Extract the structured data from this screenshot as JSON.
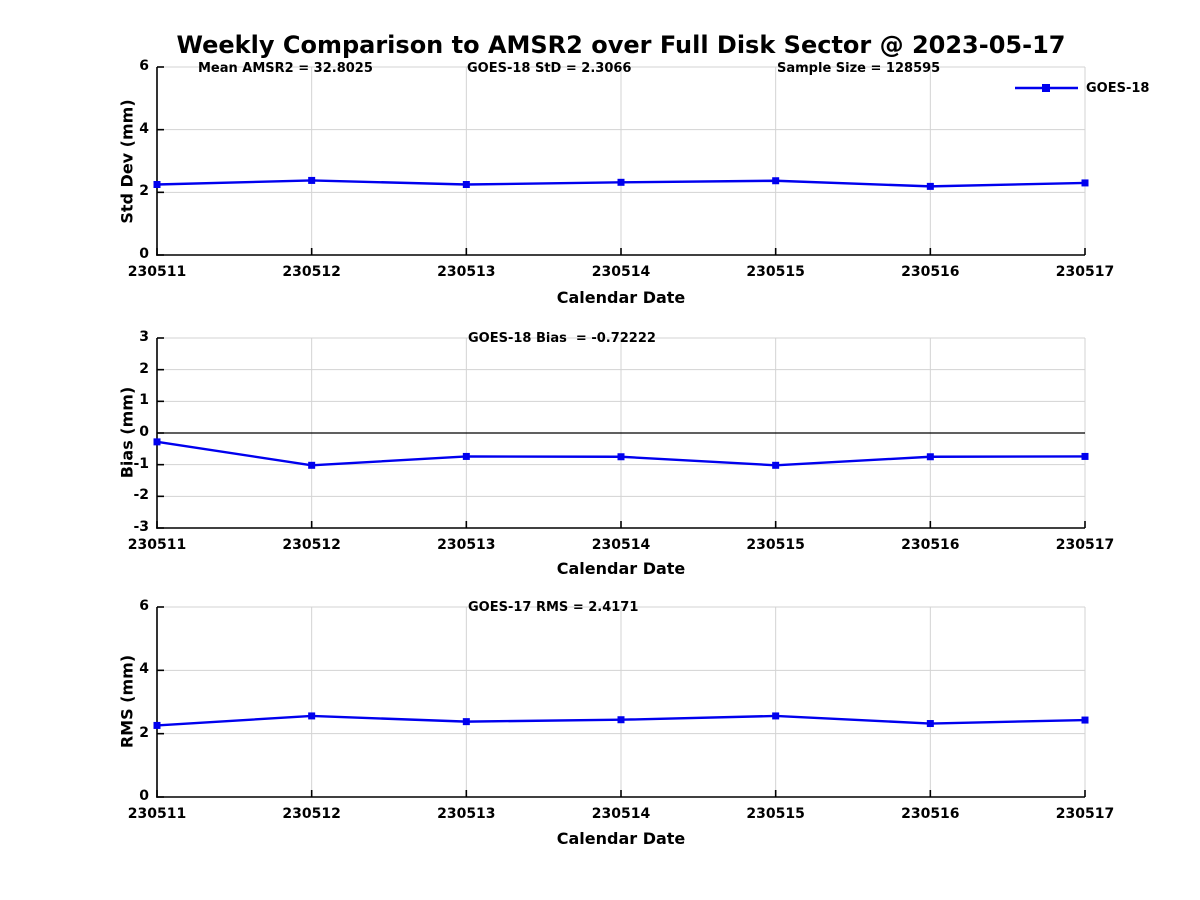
{
  "figure": {
    "title": "Weekly Comparison to AMSR2 over Full Disk Sector @ 2023-05-17",
    "legend": {
      "label": "GOES-18",
      "position": "top-right",
      "marker": "filled-square"
    },
    "colors": {
      "line": "#0000EE",
      "grid": "#d3d3d3",
      "axis": "#000000",
      "zero_line": "#000000",
      "text": "#000000",
      "background": "#ffffff"
    }
  },
  "chart_data": [
    {
      "type": "line",
      "categories": [
        "230511",
        "230512",
        "230513",
        "230514",
        "230515",
        "230516",
        "230517"
      ],
      "series": [
        {
          "name": "GOES-18",
          "values": [
            2.25,
            2.38,
            2.25,
            2.32,
            2.37,
            2.19,
            2.3
          ]
        }
      ],
      "xlabel": "Calendar Date",
      "ylabel": "Std Dev (mm)",
      "ylim": [
        0,
        6
      ],
      "yticks": [
        0,
        2,
        4,
        6
      ],
      "grid": true,
      "zero_line": false,
      "annotations": [
        "Mean AMSR2 = 32.8025",
        "GOES-18 StD = 2.3066",
        "Sample Size = 128595"
      ],
      "legend_entries": [
        "GOES-18"
      ]
    },
    {
      "type": "line",
      "categories": [
        "230511",
        "230512",
        "230513",
        "230514",
        "230515",
        "230516",
        "230517"
      ],
      "series": [
        {
          "name": "GOES-18",
          "values": [
            -0.28,
            -1.02,
            -0.74,
            -0.75,
            -1.02,
            -0.75,
            -0.74
          ]
        }
      ],
      "xlabel": "Calendar Date",
      "ylabel": "Bias (mm)",
      "ylim": [
        -3,
        3
      ],
      "yticks": [
        -3,
        -2,
        -1,
        0,
        1,
        2,
        3
      ],
      "grid": true,
      "zero_line": true,
      "annotations": [
        "GOES-18 Bias  = -0.72222"
      ],
      "legend_entries": []
    },
    {
      "type": "line",
      "categories": [
        "230511",
        "230512",
        "230513",
        "230514",
        "230515",
        "230516",
        "230517"
      ],
      "series": [
        {
          "name": "GOES-18",
          "values": [
            2.26,
            2.56,
            2.38,
            2.44,
            2.56,
            2.32,
            2.43
          ]
        }
      ],
      "xlabel": "Calendar Date",
      "ylabel": "RMS (mm)",
      "ylim": [
        0,
        6
      ],
      "yticks": [
        0,
        2,
        4,
        6
      ],
      "grid": true,
      "zero_line": false,
      "annotations": [
        "GOES-17 RMS = 2.4171"
      ],
      "legend_entries": []
    }
  ]
}
